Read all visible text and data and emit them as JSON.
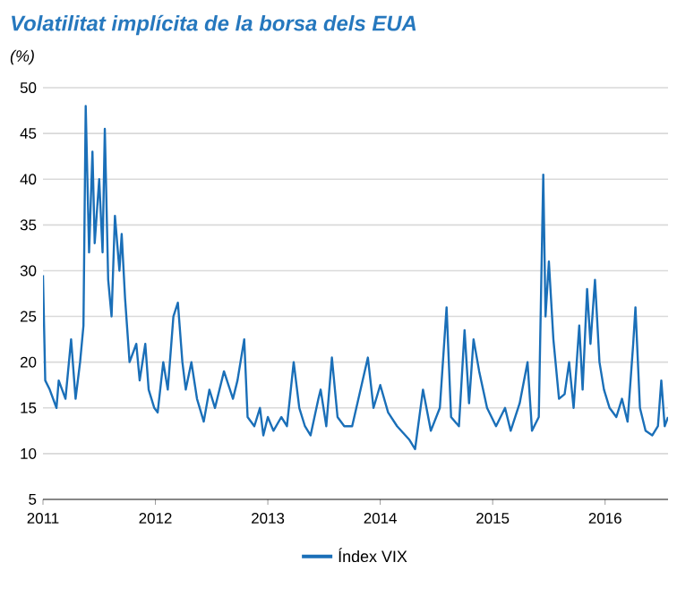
{
  "chart_data": {
    "type": "line",
    "title": "Volatilitat implícita de la borsa dels EUA",
    "ylabel": "(%)",
    "x": [
      2011.0,
      2011.02,
      2011.06,
      2011.12,
      2011.14,
      2011.2,
      2011.25,
      2011.29,
      2011.33,
      2011.36,
      2011.38,
      2011.41,
      2011.44,
      2011.46,
      2011.5,
      2011.53,
      2011.55,
      2011.58,
      2011.61,
      2011.64,
      2011.68,
      2011.7,
      2011.73,
      2011.77,
      2011.83,
      2011.86,
      2011.91,
      2011.94,
      2011.99,
      2012.02,
      2012.07,
      2012.11,
      2012.16,
      2012.2,
      2012.24,
      2012.27,
      2012.32,
      2012.37,
      2012.43,
      2012.48,
      2012.53,
      2012.61,
      2012.69,
      2012.73,
      2012.79,
      2012.82,
      2012.88,
      2012.93,
      2012.96,
      2013.0,
      2013.05,
      2013.12,
      2013.17,
      2013.23,
      2013.28,
      2013.33,
      2013.38,
      2013.45,
      2013.47,
      2013.52,
      2013.57,
      2013.62,
      2013.68,
      2013.75,
      2013.89,
      2013.94,
      2014.0,
      2014.07,
      2014.15,
      2014.26,
      2014.31,
      2014.38,
      2014.45,
      2014.53,
      2014.59,
      2014.63,
      2014.7,
      2014.75,
      2014.79,
      2014.83,
      2014.88,
      2014.95,
      2015.03,
      2015.11,
      2015.16,
      2015.24,
      2015.31,
      2015.35,
      2015.41,
      2015.45,
      2015.47,
      2015.5,
      2015.54,
      2015.59,
      2015.64,
      2015.68,
      2015.72,
      2015.77,
      2015.8,
      2015.84,
      2015.87,
      2015.91,
      2015.95,
      2015.99,
      2016.04,
      2016.1,
      2016.15,
      2016.2,
      2016.25,
      2016.27,
      2016.31,
      2016.36,
      2016.42,
      2016.47,
      2016.5,
      2016.53,
      2016.56
    ],
    "series": [
      {
        "name": "Índex VIX",
        "color": "#1a6fb8",
        "values": [
          29.5,
          18,
          17,
          15,
          18,
          16,
          22.5,
          16,
          20,
          24,
          48,
          32,
          43,
          33,
          40,
          32,
          45.5,
          29,
          25,
          36,
          30,
          34,
          27,
          20,
          22,
          18,
          22,
          17,
          15,
          14.5,
          20,
          17,
          25,
          26.5,
          20,
          17,
          20,
          16,
          13.5,
          17,
          15,
          19,
          16,
          18,
          22.5,
          14,
          13,
          15,
          12,
          14,
          12.5,
          14,
          13,
          20,
          15,
          13,
          12,
          16,
          17,
          13,
          20.5,
          14,
          13,
          13,
          20.5,
          15,
          17.5,
          14.5,
          13,
          11.5,
          10.5,
          17,
          12.5,
          15,
          26,
          14,
          13,
          23.5,
          15.5,
          22.5,
          19,
          15,
          13,
          15,
          12.5,
          15.5,
          20,
          12.5,
          14,
          40.5,
          25,
          31,
          22.5,
          16,
          16.5,
          20,
          15,
          24,
          17,
          28,
          22,
          29,
          20,
          17,
          15,
          14,
          16,
          13.5,
          22,
          26,
          15,
          12.5,
          12,
          13,
          18,
          13,
          14
        ]
      }
    ],
    "xlim": [
      2011.0,
      2016.56
    ],
    "xticks": [
      2011,
      2012,
      2013,
      2014,
      2015,
      2016
    ],
    "ylim": [
      5,
      50
    ],
    "yticks": [
      5,
      10,
      15,
      20,
      25,
      30,
      35,
      40,
      45,
      50
    ],
    "grid": "y",
    "legend": "bottom",
    "marker": "none",
    "line_style": "solid"
  }
}
